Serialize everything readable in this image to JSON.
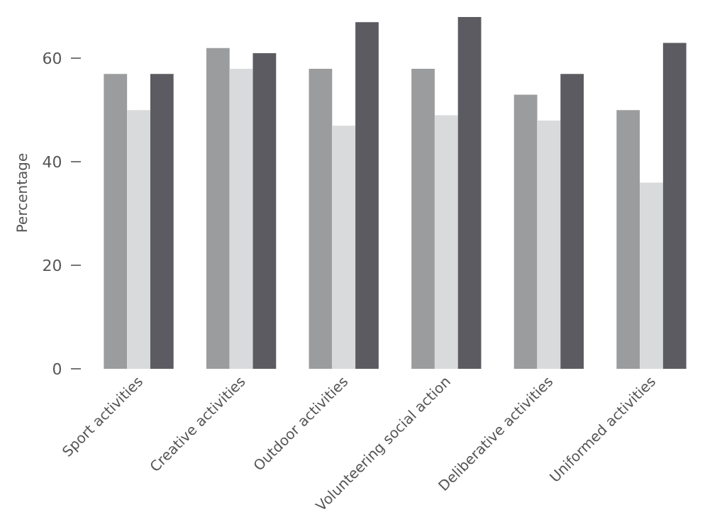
{
  "chart_data": {
    "type": "bar",
    "ylabel": "Percentage",
    "categories": [
      "Sport activities",
      "Creative activities",
      "Outdoor activities",
      "Volunteering social action",
      "Deliberative activities",
      "Uniformed activities"
    ],
    "series": [
      {
        "color": "#9b9c9d",
        "values": [
          57,
          62,
          58,
          58,
          53,
          50
        ]
      },
      {
        "color": "#d9dadc",
        "values": [
          50,
          58,
          47,
          49,
          48,
          36
        ]
      },
      {
        "color": "#5b5b61",
        "values": [
          57,
          61,
          67,
          68,
          57,
          63
        ]
      }
    ],
    "ylim": [
      0,
      68
    ],
    "yticks": [
      0,
      20,
      40,
      60
    ],
    "grid": false
  }
}
